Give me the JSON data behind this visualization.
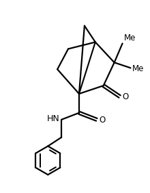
{
  "background_color": "#ffffff",
  "line_color": "#000000",
  "line_width": 1.6,
  "font_size": 8.5,
  "figsize": [
    2.2,
    2.82
  ],
  "dpi": 100,
  "xlim": [
    0,
    11
  ],
  "ylim": [
    0,
    14
  ]
}
